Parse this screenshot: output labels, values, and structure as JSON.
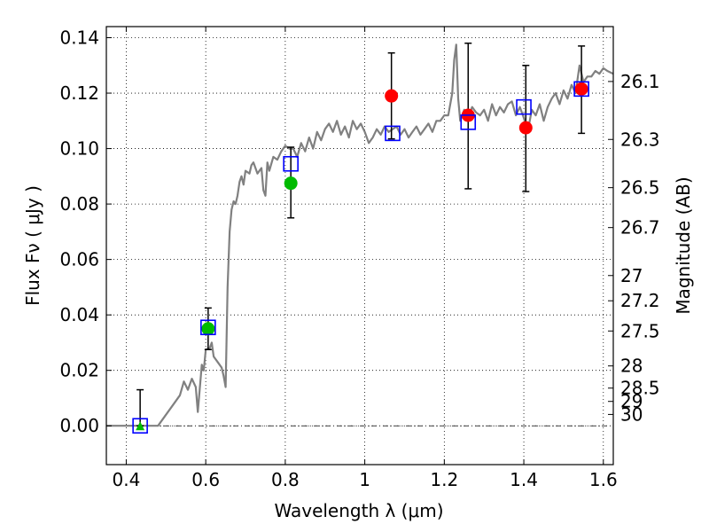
{
  "chart_data": {
    "type": "scatter",
    "xlabel": "Wavelength  λ (μm)",
    "ylabel": "Flux  Fν  ( μJy )",
    "y2label": "Magnitude (AB)",
    "xlim": [
      0.35,
      1.625
    ],
    "ylim": [
      -0.014,
      0.144
    ],
    "grid": true,
    "x_ticks": [
      {
        "value": 0.4,
        "label": "0.4"
      },
      {
        "value": 0.6,
        "label": "0.6"
      },
      {
        "value": 0.8,
        "label": "0.8"
      },
      {
        "value": 1.0,
        "label": "1"
      },
      {
        "value": 1.2,
        "label": "1.2"
      },
      {
        "value": 1.4,
        "label": "1.4"
      },
      {
        "value": 1.6,
        "label": "1.6"
      }
    ],
    "y_ticks": [
      {
        "value": 0.0,
        "label": "0.00"
      },
      {
        "value": 0.02,
        "label": "0.02"
      },
      {
        "value": 0.04,
        "label": "0.04"
      },
      {
        "value": 0.06,
        "label": "0.06"
      },
      {
        "value": 0.08,
        "label": "0.08"
      },
      {
        "value": 0.1,
        "label": "0.10"
      },
      {
        "value": 0.12,
        "label": "0.12"
      },
      {
        "value": 0.14,
        "label": "0.14"
      }
    ],
    "y2_ticks": [
      {
        "label": "26.1",
        "flux": 0.1242
      },
      {
        "label": "26.3",
        "flux": 0.1033
      },
      {
        "label": "26.5",
        "flux": 0.0859
      },
      {
        "label": "26.7",
        "flux": 0.0715
      },
      {
        "label": "27",
        "flux": 0.0542
      },
      {
        "label": "27.2",
        "flux": 0.0451
      },
      {
        "label": "27.5",
        "flux": 0.0342
      },
      {
        "label": "28",
        "flux": 0.0216
      },
      {
        "label": "28.5",
        "flux": 0.0136
      },
      {
        "label": "29",
        "flux": 0.0088
      },
      {
        "label": "30",
        "flux": 0.0041
      }
    ],
    "series": [
      {
        "marker": "triangle",
        "color": "#00bb00",
        "points": [
          {
            "x": 0.435,
            "y": 0.0,
            "err_low": 0.0,
            "err_high": 0.013
          }
        ]
      },
      {
        "marker": "circle",
        "color": "#00bb00",
        "points": [
          {
            "x": 0.606,
            "y": 0.035,
            "err_low": 0.0275,
            "err_high": 0.0425
          },
          {
            "x": 0.814,
            "y": 0.0875,
            "err_low": 0.075,
            "err_high": 0.1005
          }
        ]
      },
      {
        "marker": "circle",
        "color": "#ff0000",
        "points": [
          {
            "x": 1.067,
            "y": 0.119,
            "err_low": 0.1035,
            "err_high": 0.1345
          },
          {
            "x": 1.26,
            "y": 0.112,
            "err_low": 0.0855,
            "err_high": 0.138
          },
          {
            "x": 1.405,
            "y": 0.1075,
            "err_low": 0.0845,
            "err_high": 0.13
          },
          {
            "x": 1.545,
            "y": 0.1215,
            "err_low": 0.1055,
            "err_high": 0.137
          }
        ]
      },
      {
        "marker": "square",
        "color": "#0000ff",
        "points": [
          {
            "x": 0.435,
            "y": 0.0
          },
          {
            "x": 0.606,
            "y": 0.0355
          },
          {
            "x": 0.814,
            "y": 0.0945
          },
          {
            "x": 1.07,
            "y": 0.1055
          },
          {
            "x": 1.26,
            "y": 0.1095
          },
          {
            "x": 1.4,
            "y": 0.115
          },
          {
            "x": 1.545,
            "y": 0.1215
          }
        ]
      },
      {
        "type": "line",
        "color": "#808080",
        "x": [
          0.35,
          0.48,
          0.5,
          0.52,
          0.535,
          0.545,
          0.555,
          0.565,
          0.575,
          0.58,
          0.59,
          0.595,
          0.6,
          0.61,
          0.615,
          0.62,
          0.63,
          0.64,
          0.645,
          0.65,
          0.655,
          0.66,
          0.665,
          0.67,
          0.675,
          0.68,
          0.685,
          0.69,
          0.695,
          0.7,
          0.71,
          0.715,
          0.72,
          0.73,
          0.74,
          0.745,
          0.75,
          0.755,
          0.76,
          0.77,
          0.78,
          0.79,
          0.8,
          0.81,
          0.82,
          0.83,
          0.84,
          0.85,
          0.86,
          0.87,
          0.88,
          0.89,
          0.9,
          0.91,
          0.92,
          0.93,
          0.94,
          0.95,
          0.96,
          0.97,
          0.98,
          0.99,
          1.0,
          1.01,
          1.02,
          1.03,
          1.04,
          1.05,
          1.06,
          1.08,
          1.09,
          1.1,
          1.11,
          1.12,
          1.13,
          1.14,
          1.15,
          1.16,
          1.17,
          1.18,
          1.19,
          1.2,
          1.21,
          1.22,
          1.225,
          1.23,
          1.235,
          1.24,
          1.25,
          1.26,
          1.27,
          1.28,
          1.29,
          1.3,
          1.31,
          1.32,
          1.33,
          1.34,
          1.35,
          1.36,
          1.37,
          1.38,
          1.39,
          1.4,
          1.41,
          1.42,
          1.43,
          1.44,
          1.45,
          1.46,
          1.47,
          1.48,
          1.49,
          1.5,
          1.51,
          1.52,
          1.53,
          1.54,
          1.55,
          1.56,
          1.57,
          1.58,
          1.59,
          1.6,
          1.61,
          1.625
        ],
        "y": [
          0.0,
          0.0,
          0.004,
          0.008,
          0.011,
          0.016,
          0.013,
          0.017,
          0.014,
          0.005,
          0.022,
          0.02,
          0.0275,
          0.028,
          0.03,
          0.025,
          0.023,
          0.021,
          0.018,
          0.014,
          0.05,
          0.07,
          0.078,
          0.081,
          0.08,
          0.083,
          0.088,
          0.09,
          0.087,
          0.092,
          0.091,
          0.094,
          0.095,
          0.091,
          0.093,
          0.085,
          0.083,
          0.095,
          0.092,
          0.097,
          0.096,
          0.099,
          0.101,
          0.1,
          0.1,
          0.097,
          0.102,
          0.099,
          0.104,
          0.1,
          0.106,
          0.103,
          0.107,
          0.109,
          0.106,
          0.11,
          0.105,
          0.108,
          0.104,
          0.11,
          0.107,
          0.109,
          0.106,
          0.102,
          0.104,
          0.107,
          0.105,
          0.108,
          0.106,
          0.108,
          0.105,
          0.107,
          0.104,
          0.106,
          0.108,
          0.105,
          0.107,
          0.109,
          0.106,
          0.11,
          0.11,
          0.112,
          0.112,
          0.12,
          0.132,
          0.1375,
          0.118,
          0.11,
          0.114,
          0.111,
          0.115,
          0.113,
          0.112,
          0.114,
          0.11,
          0.116,
          0.112,
          0.115,
          0.113,
          0.116,
          0.117,
          0.112,
          0.115,
          0.111,
          0.106,
          0.114,
          0.112,
          0.116,
          0.11,
          0.115,
          0.118,
          0.12,
          0.116,
          0.121,
          0.118,
          0.123,
          0.12,
          0.13,
          0.124,
          0.126,
          0.126,
          0.128,
          0.127,
          0.129,
          0.128,
          0.127
        ]
      }
    ]
  }
}
